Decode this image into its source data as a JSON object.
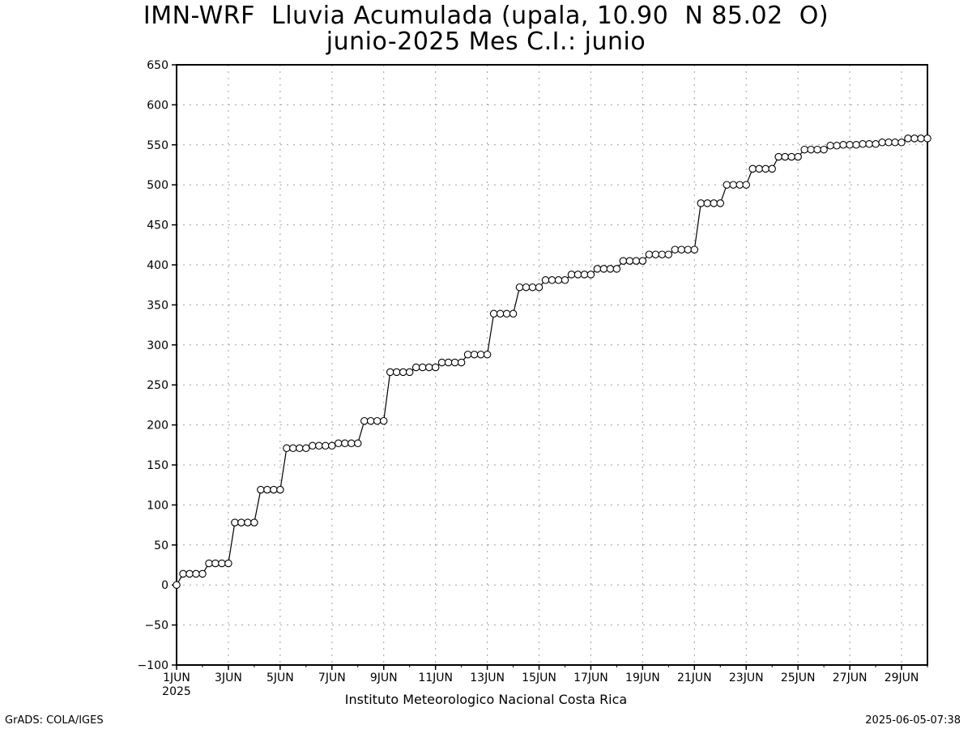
{
  "header": {
    "title_line1": "IMN-WRF  Lluvia Acumulada (upala, 10.90  N 85.02  O)",
    "title_line2": "junio-2025 Mes C.I.: junio"
  },
  "footer": {
    "credit": "Instituto Meteorologico Nacional Costa Rica",
    "left": "GrADS: COLA/IGES",
    "right": "2025-06-05-07:38"
  },
  "chart_data": {
    "type": "line",
    "title": "IMN-WRF  Lluvia Acumulada (upala, 10.90  N 85.02  O)",
    "subtitle": "junio-2025 Mes C.I.: junio",
    "xlabel": "",
    "ylabel": "",
    "ylim": [
      -100,
      650
    ],
    "yticks": [
      -100,
      -50,
      0,
      50,
      100,
      150,
      200,
      250,
      300,
      350,
      400,
      450,
      500,
      550,
      600,
      650
    ],
    "xlim_days": [
      1,
      30
    ],
    "xticks": [
      {
        "day": 1,
        "label": "1JUN",
        "sublabel": "2025"
      },
      {
        "day": 3,
        "label": "3JUN"
      },
      {
        "day": 5,
        "label": "5JUN"
      },
      {
        "day": 7,
        "label": "7JUN"
      },
      {
        "day": 9,
        "label": "9JUN"
      },
      {
        "day": 11,
        "label": "11JUN"
      },
      {
        "day": 13,
        "label": "13JUN"
      },
      {
        "day": 15,
        "label": "15JUN"
      },
      {
        "day": 17,
        "label": "17JUN"
      },
      {
        "day": 19,
        "label": "19JUN"
      },
      {
        "day": 21,
        "label": "21JUN"
      },
      {
        "day": 23,
        "label": "23JUN"
      },
      {
        "day": 25,
        "label": "25JUN"
      },
      {
        "day": 27,
        "label": "27JUN"
      },
      {
        "day": 29,
        "label": "29JUN"
      }
    ],
    "grid": true,
    "marker": "open-circle",
    "points_per_day": 4,
    "daily_values": [
      [
        0,
        14,
        14,
        14
      ],
      [
        14,
        27,
        27,
        27
      ],
      [
        27,
        78,
        78,
        78
      ],
      [
        78,
        119,
        119,
        119
      ],
      [
        119,
        171,
        171,
        171
      ],
      [
        171,
        174,
        174,
        174
      ],
      [
        174,
        177,
        177,
        177
      ],
      [
        177,
        205,
        205,
        205
      ],
      [
        205,
        266,
        266,
        266
      ],
      [
        266,
        272,
        272,
        272
      ],
      [
        272,
        278,
        278,
        278
      ],
      [
        278,
        288,
        288,
        288
      ],
      [
        288,
        339,
        339,
        339
      ],
      [
        339,
        372,
        372,
        372
      ],
      [
        372,
        381,
        381,
        381
      ],
      [
        381,
        388,
        388,
        388
      ],
      [
        388,
        395,
        395,
        395
      ],
      [
        395,
        405,
        405,
        405
      ],
      [
        405,
        413,
        413,
        413
      ],
      [
        413,
        419,
        419,
        419
      ],
      [
        419,
        477,
        477,
        477
      ],
      [
        477,
        500,
        500,
        500
      ],
      [
        500,
        520,
        520,
        520
      ],
      [
        520,
        535,
        535,
        535
      ],
      [
        535,
        544,
        544,
        544
      ],
      [
        544,
        549,
        549,
        550
      ],
      [
        550,
        550,
        551,
        551
      ],
      [
        551,
        553,
        553,
        553
      ],
      [
        553,
        558,
        558,
        558
      ],
      [
        558
      ]
    ],
    "colors": {
      "line": "#000000",
      "marker_fill": "#ffffff",
      "grid": "#a0a0a0",
      "axis": "#000000"
    }
  }
}
